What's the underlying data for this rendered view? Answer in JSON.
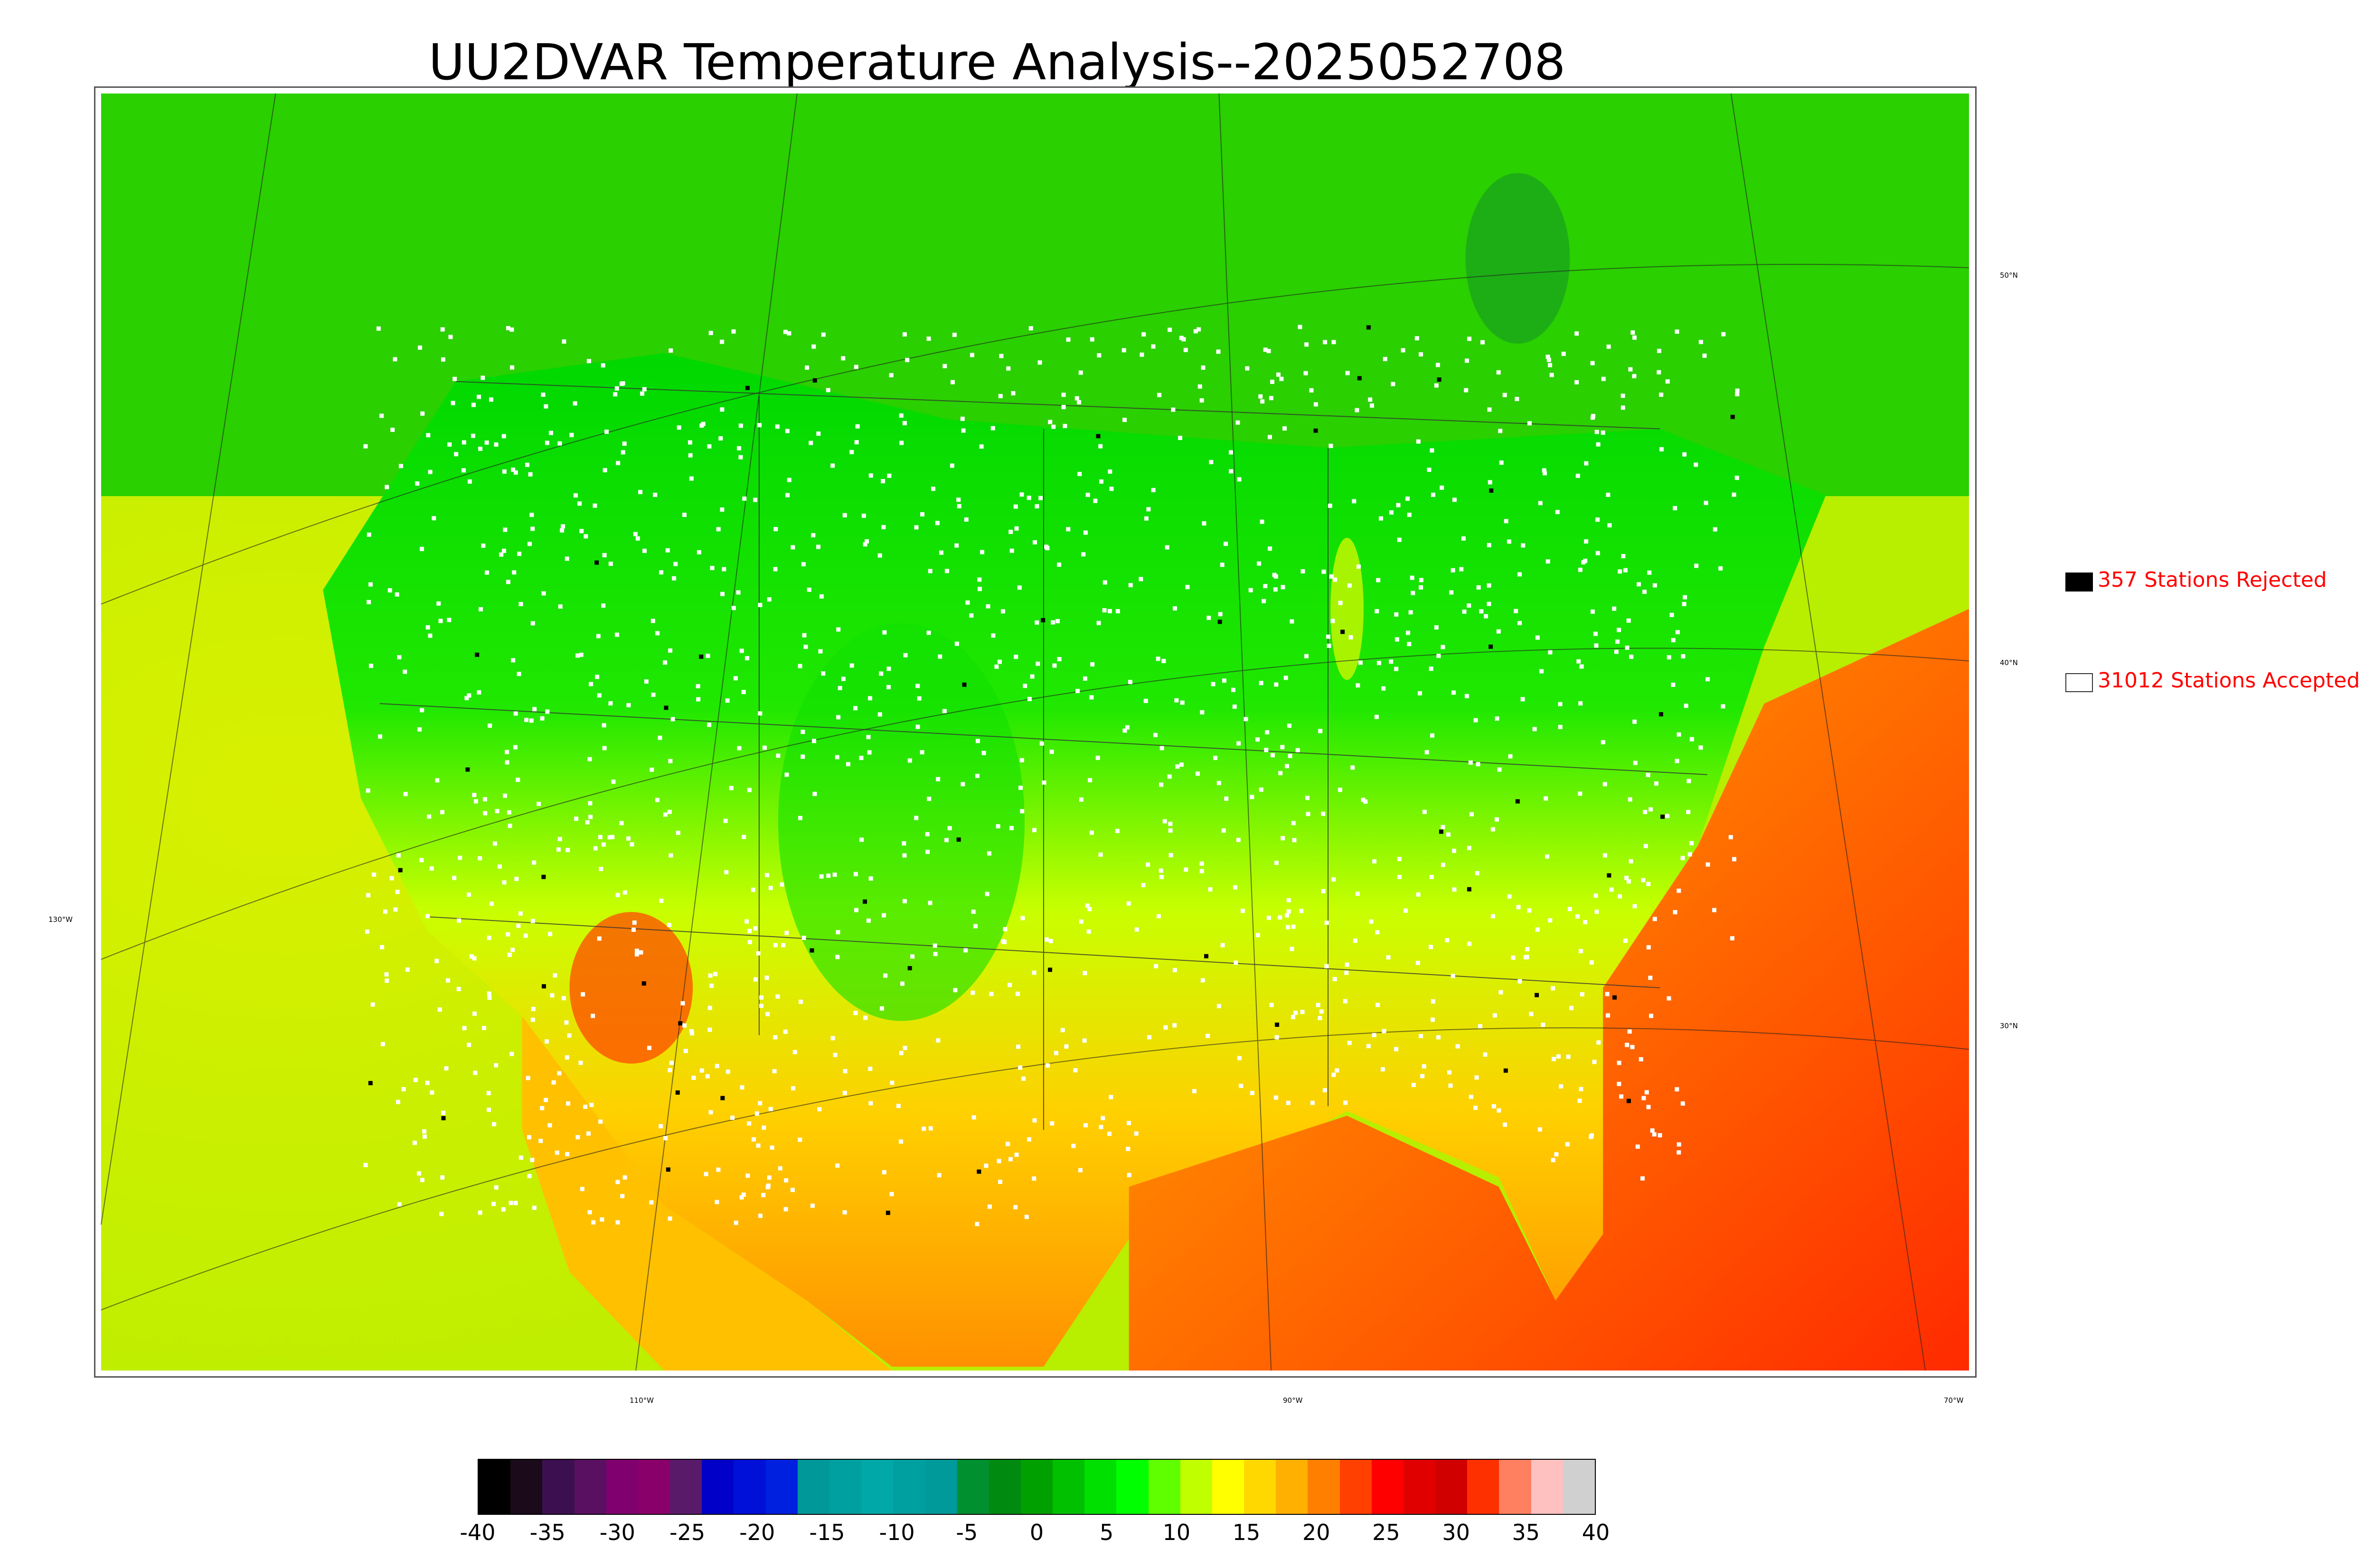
{
  "title": "UU2DVAR Temperature Analysis--2025052708",
  "map": {
    "lon_labels": [
      "130°W",
      "110°W",
      "90°W",
      "70°W"
    ],
    "lat_labels": [
      "50°N",
      "40°N",
      "30°N"
    ]
  },
  "legend": {
    "rejected": {
      "label": "357 Stations Rejected",
      "color": "#000000"
    },
    "accepted": {
      "label": "31012 Stations Accepted",
      "color": "#ffffff"
    }
  },
  "colorbar": {
    "min": -40,
    "max": 40,
    "tick_labels": [
      "-40",
      "-35",
      "-30",
      "-25",
      "-20",
      "-15",
      "-10",
      "-5",
      "0",
      "5",
      "10",
      "15",
      "20",
      "25",
      "30",
      "35",
      "40"
    ],
    "colors": [
      "#000000",
      "#1a0a1a",
      "#3c1050",
      "#5a1060",
      "#800070",
      "#8a006a",
      "#5a1a6a",
      "#0000c8",
      "#0010d8",
      "#0020e0",
      "#009898",
      "#00a0a0",
      "#00a8a8",
      "#00a0a0",
      "#009a9a",
      "#009030",
      "#008a10",
      "#00a000",
      "#00c000",
      "#00e000",
      "#00ff00",
      "#60ff00",
      "#c0ff00",
      "#ffff00",
      "#ffd800",
      "#ffb000",
      "#ff8000",
      "#ff4000",
      "#ff0000",
      "#e00000",
      "#d00000",
      "#ff3000",
      "#ff8060",
      "#ffc0c0",
      "#d0d0d0"
    ]
  }
}
